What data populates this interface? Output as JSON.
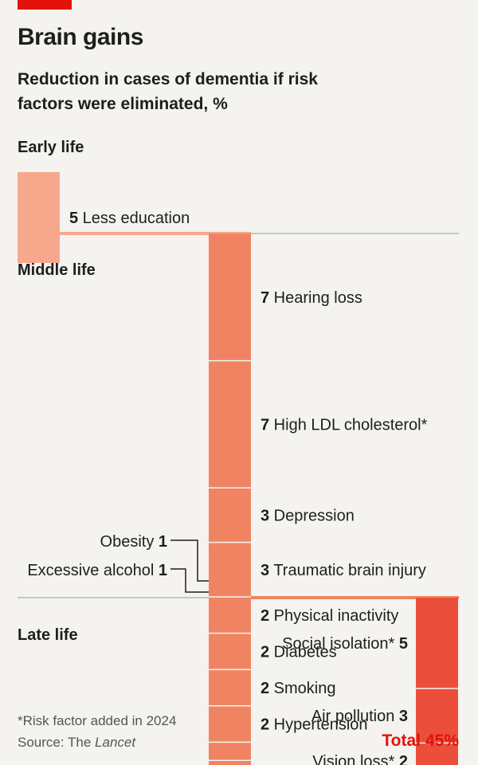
{
  "title": "Brain gains",
  "subtitle": "Reduction in cases of dementia if risk factors were eliminated, %",
  "footnote": "*Risk factor added in 2024",
  "source_prefix": "Source: The ",
  "source_name": "Lancet",
  "total_label": "Total",
  "total_value": "45%",
  "colors": {
    "early": "#f7a78b",
    "middle": "#f08462",
    "late": "#eb4f3c",
    "accent": "#e3120b"
  },
  "chart_data": {
    "type": "bar",
    "title": "Brain gains",
    "subtitle": "Reduction in cases of dementia if risk factors were eliminated, %",
    "total": 45,
    "groups": [
      {
        "name": "Early life",
        "items": [
          {
            "label": "Less education",
            "value": 5
          }
        ]
      },
      {
        "name": "Middle life",
        "items": [
          {
            "label": "Hearing loss",
            "value": 7
          },
          {
            "label": "High LDL cholesterol*",
            "value": 7
          },
          {
            "label": "Depression",
            "value": 3
          },
          {
            "label": "Traumatic brain injury",
            "value": 3
          },
          {
            "label": "Physical inactivity",
            "value": 2
          },
          {
            "label": "Diabetes",
            "value": 2
          },
          {
            "label": "Smoking",
            "value": 2
          },
          {
            "label": "Hypertension",
            "value": 2
          },
          {
            "label": "Obesity",
            "value": 1
          },
          {
            "label": "Excessive alcohol",
            "value": 1
          }
        ]
      },
      {
        "name": "Late life",
        "items": [
          {
            "label": "Social isolation*",
            "value": 5
          },
          {
            "label": "Air pollution",
            "value": 3
          },
          {
            "label": "Vision loss*",
            "value": 2
          }
        ]
      }
    ]
  }
}
